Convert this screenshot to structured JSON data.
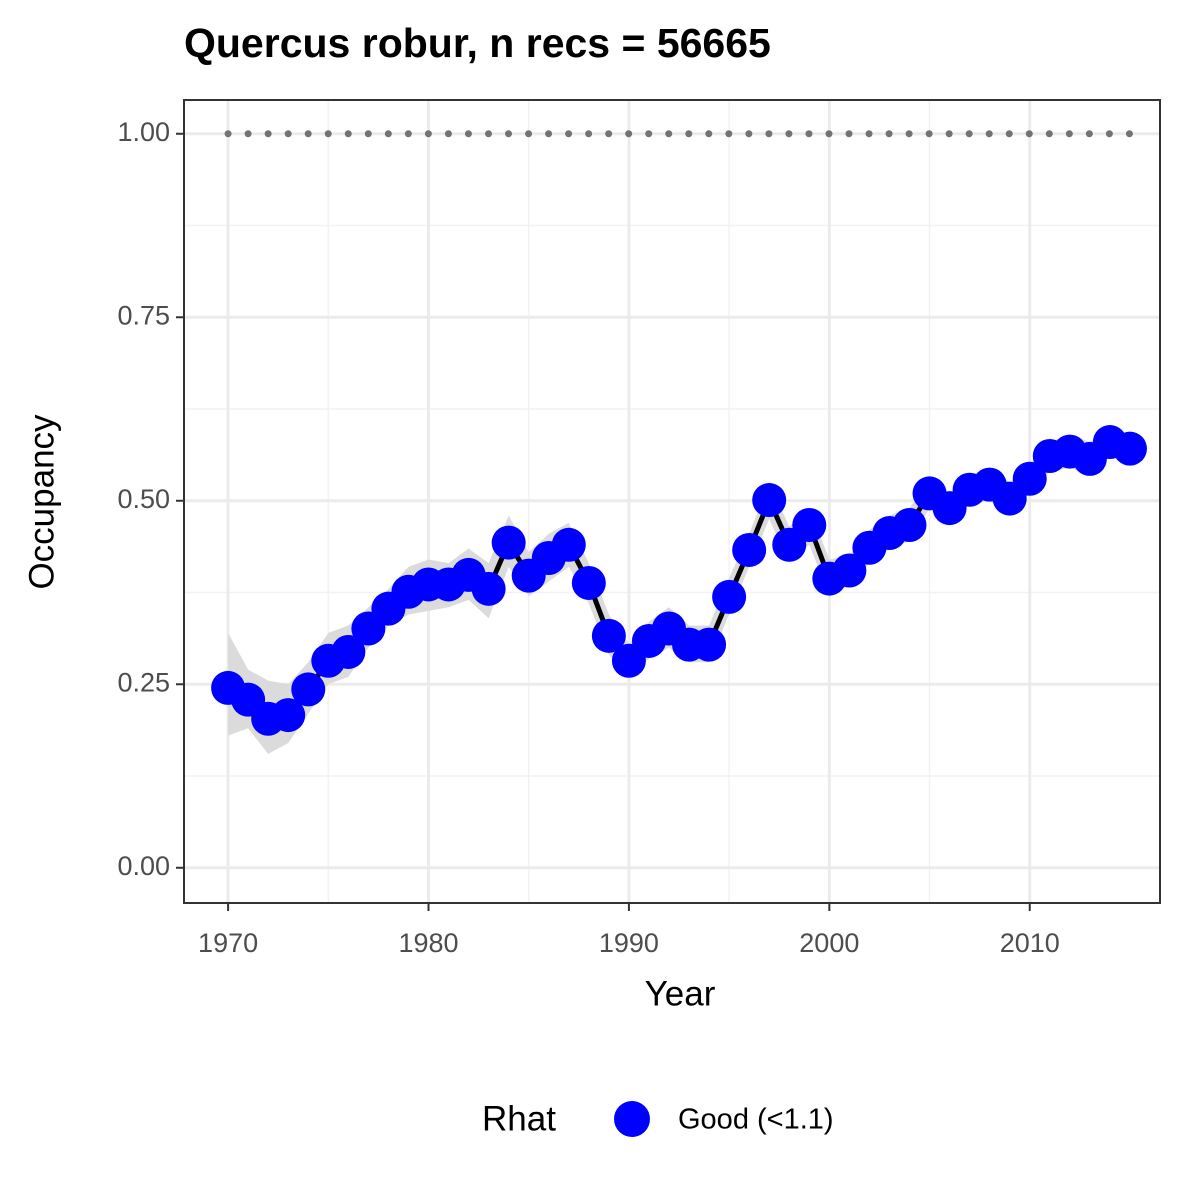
{
  "chart_data": {
    "type": "line",
    "title": "Quercus robur, n recs = 56665",
    "x_label": "Year",
    "y_label": "Occupancy",
    "legend_title": "Rhat",
    "legend_position": "bottom",
    "x": [
      1970,
      1971,
      1972,
      1973,
      1974,
      1975,
      1976,
      1977,
      1978,
      1979,
      1980,
      1981,
      1982,
      1983,
      1984,
      1985,
      1986,
      1987,
      1988,
      1989,
      1990,
      1991,
      1992,
      1993,
      1994,
      1995,
      1996,
      1997,
      1998,
      1999,
      2000,
      2001,
      2002,
      2003,
      2004,
      2005,
      2006,
      2007,
      2008,
      2009,
      2010,
      2011,
      2012,
      2013,
      2014,
      2015
    ],
    "series": [
      {
        "name": "Good (<1.1)",
        "color": "#0000ff",
        "line_color": "#000000",
        "values": [
          0.245,
          0.229,
          0.203,
          0.208,
          0.243,
          0.282,
          0.294,
          0.326,
          0.353,
          0.376,
          0.386,
          0.386,
          0.399,
          0.38,
          0.443,
          0.398,
          0.422,
          0.44,
          0.388,
          0.316,
          0.282,
          0.309,
          0.326,
          0.304,
          0.304,
          0.369,
          0.433,
          0.501,
          0.44,
          0.467,
          0.394,
          0.405,
          0.436,
          0.456,
          0.467,
          0.51,
          0.49,
          0.515,
          0.522,
          0.503,
          0.53,
          0.561,
          0.567,
          0.557,
          0.58,
          0.571
        ]
      }
    ],
    "ribbon": {
      "color": "#d9d9d9",
      "lower": [
        0.18,
        0.19,
        0.155,
        0.17,
        0.21,
        0.25,
        0.26,
        0.3,
        0.33,
        0.345,
        0.35,
        0.355,
        0.365,
        0.34,
        0.41,
        0.37,
        0.39,
        0.41,
        0.36,
        0.29,
        0.26,
        0.285,
        0.3,
        0.28,
        0.28,
        0.345,
        0.41,
        0.475,
        0.415,
        0.44,
        0.37,
        0.385,
        0.415,
        0.435,
        0.445,
        0.49,
        0.47,
        0.495,
        0.5,
        0.48,
        0.51,
        0.54,
        0.545,
        0.535,
        0.56,
        0.55
      ],
      "upper": [
        0.32,
        0.27,
        0.255,
        0.25,
        0.28,
        0.32,
        0.33,
        0.355,
        0.38,
        0.41,
        0.42,
        0.415,
        0.435,
        0.415,
        0.48,
        0.43,
        0.455,
        0.47,
        0.415,
        0.345,
        0.305,
        0.335,
        0.355,
        0.33,
        0.33,
        0.395,
        0.455,
        0.525,
        0.465,
        0.49,
        0.42,
        0.425,
        0.46,
        0.48,
        0.49,
        0.53,
        0.51,
        0.535,
        0.545,
        0.525,
        0.55,
        0.58,
        0.59,
        0.58,
        0.6,
        0.59
      ]
    },
    "reference_value": 1,
    "reference_color": "#737373",
    "xlim": [
      1967.8,
      2016.5
    ],
    "xticks": [
      1970,
      1980,
      1990,
      2000,
      2010
    ],
    "ylim": [
      -0.048,
      1.046
    ],
    "yticks": [
      {
        "value": 0,
        "label": "0.00"
      },
      {
        "value": 0.25,
        "label": "0.25"
      },
      {
        "value": 0.5,
        "label": "0.50"
      },
      {
        "value": 0.75,
        "label": "0.75"
      },
      {
        "value": 1,
        "label": "1.00"
      }
    ],
    "grid": true
  }
}
